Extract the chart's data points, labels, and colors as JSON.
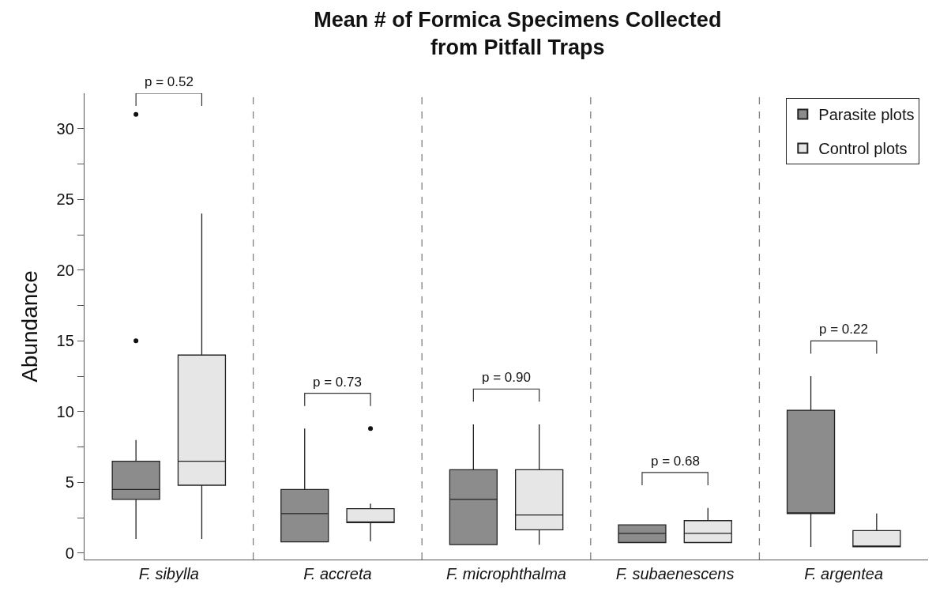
{
  "chart_data": {
    "type": "box",
    "title": "Mean # of Formica Specimens Collected\nfrom Pitfall Traps",
    "ylabel": "Abundance",
    "categories": [
      "F. sibylla",
      "F. accreta",
      "F. microphthalma",
      "F. subaenescens",
      "F. argentea"
    ],
    "series": [
      {
        "name": "Parasite plots",
        "color": "#8c8c8c",
        "boxes": [
          {
            "low": 1,
            "q1": 3.8,
            "median": 4.5,
            "q3": 6.5,
            "high": 8,
            "outliers": [
              15,
              31
            ]
          },
          {
            "low": 0.8,
            "q1": 0.8,
            "median": 2.8,
            "q3": 4.5,
            "high": 8.8
          },
          {
            "low": 0.6,
            "q1": 0.6,
            "median": 3.8,
            "q3": 5.9,
            "high": 9.1
          },
          {
            "low": 0.75,
            "q1": 0.75,
            "median": 1.4,
            "q3": 2.0,
            "high": 2.0
          },
          {
            "low": 0.45,
            "q1": 2.8,
            "median": 2.8,
            "q3": 10.1,
            "high": 12.5
          }
        ]
      },
      {
        "name": "Control plots",
        "color": "#e6e6e6",
        "boxes": [
          {
            "low": 1,
            "q1": 4.8,
            "median": 6.5,
            "q3": 14,
            "high": 24
          },
          {
            "low": 0.85,
            "q1": 2.15,
            "median": 2.15,
            "q3": 3.15,
            "high": 3.5,
            "outliers": [
              8.8
            ]
          },
          {
            "low": 0.6,
            "q1": 1.65,
            "median": 2.7,
            "q3": 5.9,
            "high": 9.1
          },
          {
            "low": 0.75,
            "q1": 0.75,
            "median": 1.4,
            "q3": 2.3,
            "high": 3.2
          },
          {
            "low": 0.45,
            "q1": 0.45,
            "median": 0.45,
            "q3": 1.6,
            "high": 2.8
          }
        ]
      }
    ],
    "ylim": [
      -0.45,
      32.5
    ],
    "yticks": [
      0,
      {
        "value": 2.5,
        "label": null
      },
      5,
      {
        "value": 7.5,
        "label": null
      },
      10,
      {
        "value": 12.5,
        "label": null
      },
      15,
      {
        "value": 17.5,
        "label": null
      },
      20,
      {
        "value": 22.5,
        "label": null
      },
      25,
      {
        "value": 27.5,
        "label": null
      },
      30
    ],
    "annotations": [
      "p = 0.52",
      "p = 0.73",
      "p = 0.90",
      "p = 0.68",
      "p = 0.22"
    ],
    "legend": "top right"
  }
}
